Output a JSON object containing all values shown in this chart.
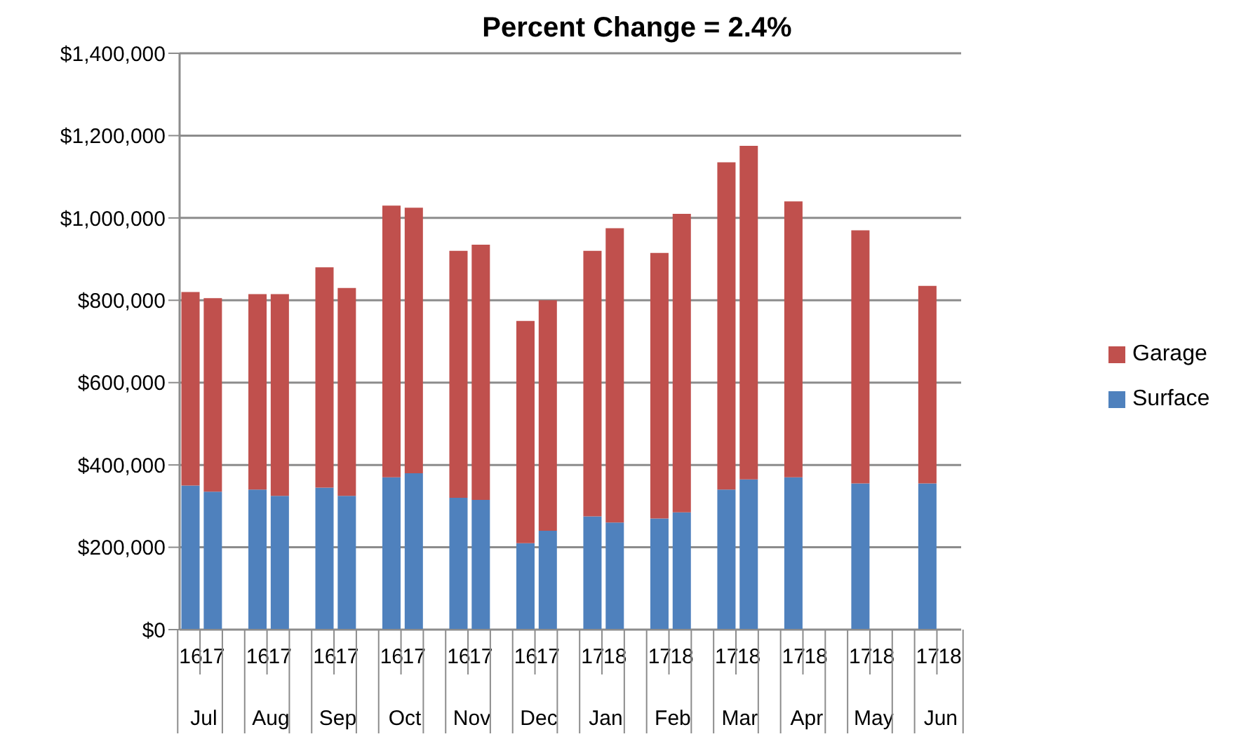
{
  "chart_data": {
    "type": "bar",
    "title": "Percent Change = 2.4%",
    "categories": [
      "16",
      "17",
      null,
      "16",
      "17",
      null,
      "16",
      "17",
      null,
      "16",
      "17",
      null,
      "16",
      "17",
      null,
      "16",
      "17",
      null,
      "17",
      "18",
      null,
      "17",
      "18",
      null,
      "17",
      "18",
      null,
      "17",
      "18",
      null,
      "17",
      "18",
      null,
      "17",
      "18"
    ],
    "annotations": [
      "Jul",
      "Aug",
      "Sep",
      "Oct",
      "Nov",
      "Dec",
      "Jan",
      "Feb",
      "Mar",
      "Apr",
      "May",
      "Jun"
    ],
    "stacked": true,
    "series": [
      {
        "name": "Surface",
        "color": "#4f81bd",
        "values": [
          350000,
          335000,
          null,
          340000,
          325000,
          null,
          345000,
          325000,
          null,
          370000,
          380000,
          null,
          320000,
          315000,
          null,
          210000,
          240000,
          null,
          275000,
          260000,
          null,
          270000,
          285000,
          null,
          340000,
          365000,
          null,
          370000,
          null,
          null,
          355000,
          null,
          null,
          355000,
          null
        ]
      },
      {
        "name": "Garage",
        "color": "#c0504d",
        "values": [
          470000,
          470000,
          null,
          475000,
          490000,
          null,
          535000,
          505000,
          null,
          660000,
          645000,
          null,
          600000,
          620000,
          null,
          540000,
          560000,
          null,
          645000,
          715000,
          null,
          645000,
          725000,
          null,
          795000,
          810000,
          null,
          670000,
          null,
          null,
          615000,
          null,
          null,
          480000,
          null
        ]
      }
    ],
    "ylim": [
      0,
      1400000
    ],
    "yticks": [
      {
        "value": 0,
        "label": "$0"
      },
      {
        "value": 200000,
        "label": "$200,000"
      },
      {
        "value": 400000,
        "label": "$400,000"
      },
      {
        "value": 600000,
        "label": "$600,000"
      },
      {
        "value": 800000,
        "label": "$800,000"
      },
      {
        "value": 1000000,
        "label": "$1,000,000"
      },
      {
        "value": 1200000,
        "label": "$1,200,000"
      },
      {
        "value": 1400000,
        "label": "$1,400,000"
      }
    ],
    "grid": "y",
    "legend": "right"
  }
}
